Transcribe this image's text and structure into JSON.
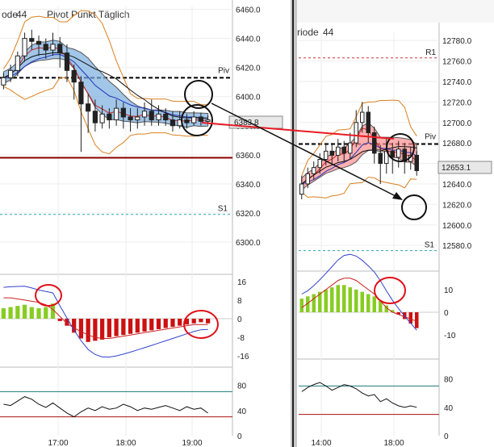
{
  "left_chart": {
    "header": {
      "period_fragment": "ode",
      "period_value": "44",
      "pivot_title": "Pivot Punkt Täglich"
    },
    "price_axis": {
      "ticks": [
        "6460.0",
        "6440.0",
        "6420.0",
        "6400.0",
        "6380.0",
        "6360.0",
        "6340.0",
        "6320.0",
        "6300.0"
      ],
      "range": [
        6290,
        6462
      ]
    },
    "current_price_label": "6383.8",
    "pivot_labels": {
      "piv": "Piv",
      "s1": "S1"
    },
    "levels": {
      "piv": 6413,
      "s1": 6319,
      "support_red": 6358
    },
    "macd_axis": {
      "ticks": [
        "16",
        "8",
        "0",
        "-8",
        "-16"
      ],
      "range": [
        -17,
        17
      ]
    },
    "stoch_axis": {
      "ticks": [
        "80",
        "40",
        "0"
      ]
    },
    "time_axis": {
      "ticks": [
        "17:00",
        "18:00",
        "19:00"
      ]
    },
    "chart_data": {
      "type": "candlestick",
      "candles": [
        [
          6408,
          6413,
          6405,
          6416
        ],
        [
          6413,
          6418,
          6410,
          6422
        ],
        [
          6418,
          6428,
          6414,
          6431
        ],
        [
          6428,
          6440,
          6424,
          6444
        ],
        [
          6440,
          6438,
          6432,
          6446
        ],
        [
          6438,
          6436,
          6428,
          6442
        ],
        [
          6436,
          6432,
          6426,
          6440
        ],
        [
          6432,
          6436,
          6428,
          6444
        ],
        [
          6436,
          6430,
          6420,
          6441
        ],
        [
          6430,
          6418,
          6410,
          6436
        ],
        [
          6418,
          6410,
          6398,
          6422
        ],
        [
          6410,
          6395,
          6362,
          6414
        ],
        [
          6395,
          6390,
          6375,
          6402
        ],
        [
          6390,
          6382,
          6376,
          6398
        ],
        [
          6382,
          6388,
          6378,
          6394
        ],
        [
          6388,
          6384,
          6378,
          6392
        ],
        [
          6384,
          6392,
          6380,
          6398
        ],
        [
          6392,
          6386,
          6378,
          6396
        ],
        [
          6386,
          6384,
          6376,
          6392
        ],
        [
          6384,
          6386,
          6378,
          6392
        ],
        [
          6386,
          6390,
          6380,
          6396
        ],
        [
          6390,
          6384,
          6380,
          6398
        ],
        [
          6384,
          6388,
          6380,
          6394
        ],
        [
          6388,
          6384,
          6380,
          6392
        ],
        [
          6384,
          6380,
          6376,
          6390
        ],
        [
          6380,
          6384,
          6378,
          6390
        ],
        [
          6384,
          6382,
          6378,
          6388
        ],
        [
          6382,
          6386,
          6380,
          6390
        ],
        [
          6386,
          6383,
          6380,
          6389
        ],
        [
          6383,
          6384,
          6381,
          6387
        ]
      ],
      "macd_histogram": [
        4.5,
        5,
        5.5,
        6,
        5,
        4.5,
        5,
        6.5,
        -1,
        -3,
        -6,
        -8.5,
        -10,
        -9.5,
        -9,
        -8,
        -7.5,
        -7,
        -6.5,
        -6,
        -5.5,
        -5,
        -4.5,
        -4,
        -3.5,
        -3,
        -2.5,
        -2,
        -1.5,
        -2
      ],
      "macd_signal": [
        9,
        9,
        8.5,
        8,
        7.5,
        7,
        6,
        4,
        1,
        -2,
        -4,
        -5.5,
        -7,
        -8,
        -8.5,
        -8.5,
        -8,
        -7.5,
        -7,
        -6.5,
        -6,
        -5.5,
        -5,
        -4.5,
        -4,
        -3.5,
        -3,
        -2.5,
        -2.5,
        -2.5
      ],
      "stochastic": [
        50,
        48,
        55,
        62,
        58,
        50,
        45,
        52,
        44,
        36,
        30,
        38,
        44,
        40,
        46,
        42,
        44,
        50,
        46,
        40,
        44,
        42,
        45,
        48,
        44,
        40,
        46,
        42,
        44,
        36
      ]
    }
  },
  "right_chart": {
    "header": {
      "period_fragment": "riode",
      "period_value": "44"
    },
    "price_axis": {
      "ticks": [
        "12780.0",
        "12760.0",
        "12740.0",
        "12720.0",
        "12700.0",
        "12680.0",
        "12660.0",
        "12640.0",
        "12620.0",
        "12600.0",
        "12580.0"
      ],
      "range": [
        12566,
        12788
      ]
    },
    "current_price_label": "12653.1",
    "pivot_labels": {
      "r1": "R1",
      "piv": "Piv",
      "s1": "S1"
    },
    "levels": {
      "r1": 12763,
      "piv": 12679,
      "s1": 12575
    },
    "macd_axis": {
      "ticks": [
        "10",
        "0",
        "-10"
      ],
      "range": [
        -16,
        16
      ]
    },
    "stoch_axis": {
      "ticks": [
        "80",
        "40",
        "0"
      ]
    },
    "time_axis": {
      "ticks": [
        "14:00",
        "18:00"
      ]
    },
    "chart_data": {
      "type": "candlestick",
      "candles": [
        [
          12630,
          12640,
          12625,
          12648
        ],
        [
          12640,
          12650,
          12636,
          12656
        ],
        [
          12650,
          12656,
          12644,
          12662
        ],
        [
          12656,
          12664,
          12650,
          12670
        ],
        [
          12664,
          12672,
          12658,
          12678
        ],
        [
          12672,
          12668,
          12660,
          12680
        ],
        [
          12668,
          12676,
          12662,
          12684
        ],
        [
          12676,
          12670,
          12662,
          12682
        ],
        [
          12670,
          12680,
          12664,
          12690
        ],
        [
          12680,
          12700,
          12676,
          12712
        ],
        [
          12700,
          12710,
          12690,
          12720
        ],
        [
          12710,
          12690,
          12680,
          12716
        ],
        [
          12690,
          12670,
          12660,
          12696
        ],
        [
          12670,
          12660,
          12640,
          12678
        ],
        [
          12660,
          12672,
          12650,
          12684
        ],
        [
          12672,
          12666,
          12650,
          12680
        ],
        [
          12666,
          12674,
          12656,
          12682
        ],
        [
          12674,
          12662,
          12650,
          12680
        ],
        [
          12662,
          12668,
          12654,
          12676
        ],
        [
          12668,
          12653,
          12648,
          12672
        ]
      ],
      "macd_histogram": [
        6,
        7,
        8,
        9,
        10,
        11,
        12,
        12,
        11,
        10,
        9,
        8,
        7,
        5,
        3,
        1,
        -1,
        -3,
        -5,
        -7
      ],
      "macd_signal": [
        2,
        4,
        6,
        8,
        10,
        12,
        14,
        15,
        15,
        14,
        12,
        10,
        8,
        5,
        2,
        0,
        -1,
        -2,
        -3,
        -4
      ],
      "stochastic": [
        62,
        68,
        72,
        75,
        70,
        64,
        68,
        72,
        70,
        66,
        60,
        56,
        58,
        48,
        52,
        46,
        42,
        40,
        42,
        40
      ]
    }
  },
  "annotation_colors": {
    "circle": "#e0101a",
    "arrow": "#111111",
    "red_line": "#e81a22"
  }
}
